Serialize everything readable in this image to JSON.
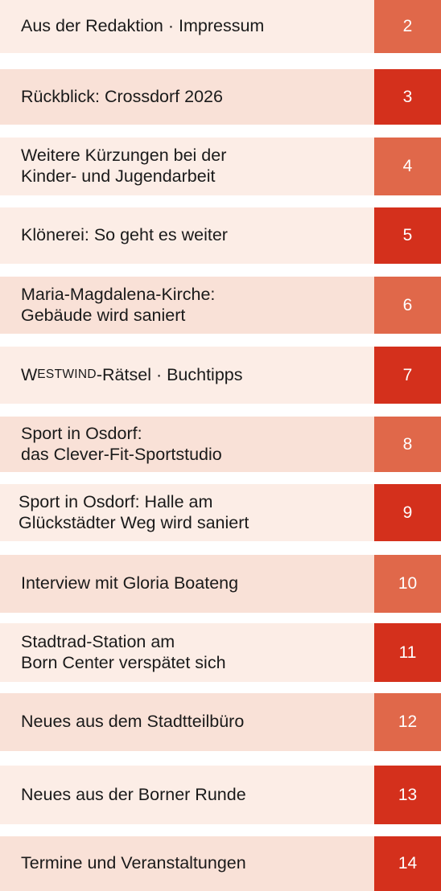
{
  "colors": {
    "row_light": "#fcede6",
    "row_medium": "#f9e1d7",
    "page_light": "#e0684a",
    "page_dark": "#d4301c",
    "title_text": "#1a1a1a",
    "page_text": "#ffffff"
  },
  "toc": [
    {
      "title": "Aus der Redaktion · Impressum",
      "page": "2"
    },
    {
      "title": "Rückblick: Crossdorf 2026",
      "page": "3"
    },
    {
      "title": "Weitere Kürzungen bei der\nKinder- und Jugendarbeit",
      "page": "4"
    },
    {
      "title": "Klönerei: So geht es weiter",
      "page": "5"
    },
    {
      "title": "Maria-Magdalena-Kirche:\nGebäude wird saniert",
      "page": "6"
    },
    {
      "title_first": "W",
      "title_smallcaps": "ESTWIND",
      "title_rest": "-Rätsel · Buchtipps",
      "page": "7"
    },
    {
      "title": "Sport in Osdorf:\ndas Clever-Fit-Sportstudio",
      "page": "8"
    },
    {
      "title": "Sport in Osdorf: Halle am\nGlückstädter Weg wird saniert",
      "page": "9"
    },
    {
      "title": "Interview mit Gloria Boateng",
      "page": "10"
    },
    {
      "title": "Stadtrad-Station am\nBorn Center verspätet sich",
      "page": "11"
    },
    {
      "title": "Neues aus dem Stadtteilbüro",
      "page": "12"
    },
    {
      "title": "Neues aus der Borner Runde",
      "page": "13"
    },
    {
      "title": "Termine und Veranstaltungen",
      "page": "14"
    }
  ]
}
